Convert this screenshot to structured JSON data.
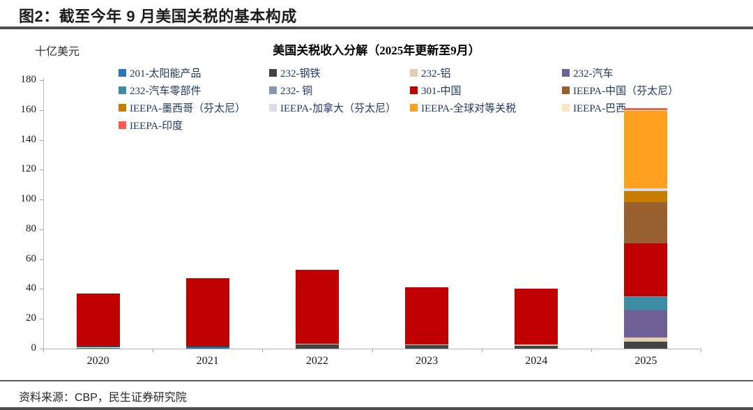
{
  "page": {
    "title": "图2：截至今年 9 月美国关税的基本构成",
    "source": "资料来源：CBP，民生证券研究院"
  },
  "chart_data": {
    "type": "bar",
    "stacked": true,
    "title": "美国关税收入分解（2025年更新至9月）",
    "xlabel": "",
    "ylabel": "十亿美元",
    "categories": [
      "2020",
      "2021",
      "2022",
      "2023",
      "2024",
      "2025"
    ],
    "ylim": [
      0,
      180
    ],
    "yticks": [
      0,
      20,
      40,
      60,
      80,
      100,
      120,
      140,
      160,
      180
    ],
    "grid": false,
    "legend_position": "top",
    "series": [
      {
        "name": "201-太阳能产品",
        "color": "#2E75B6",
        "values": [
          0.7,
          0.8,
          0,
          0,
          0,
          0
        ]
      },
      {
        "name": "232-钢铁",
        "color": "#434343",
        "values": [
          1.2,
          1.2,
          2.8,
          2.2,
          1.8,
          4.7
        ]
      },
      {
        "name": "232-铝",
        "color": "#E0CDB4",
        "values": [
          0,
          0,
          0.7,
          0.8,
          0.8,
          2.7
        ]
      },
      {
        "name": "232-汽车",
        "color": "#6F6096",
        "values": [
          0,
          0,
          0,
          0,
          0,
          18.4
        ]
      },
      {
        "name": "232-汽车零部件",
        "color": "#3E8CA3",
        "values": [
          0,
          0,
          0,
          0,
          0,
          8.9
        ]
      },
      {
        "name": "232- 铜",
        "color": "#8496B0",
        "values": [
          0,
          0,
          0,
          0,
          0,
          0.3
        ]
      },
      {
        "name": "301-中国",
        "color": "#C00000",
        "values": [
          35,
          45,
          49.5,
          38,
          37.5,
          35.8
        ]
      },
      {
        "name": "IEEPA-中国（芬太尼）",
        "color": "#99602F",
        "values": [
          0,
          0,
          0,
          0,
          0,
          27.2
        ]
      },
      {
        "name": "IEEPA-墨西哥（芬太尼）",
        "color": "#C77E00",
        "values": [
          0,
          0,
          0,
          0,
          0,
          7.5
        ]
      },
      {
        "name": "IEEPA-加拿大（芬太尼）",
        "color": "#D9DDE4",
        "values": [
          0,
          0,
          0,
          0,
          0,
          1.9
        ]
      },
      {
        "name": "IEEPA-全球对等关税",
        "color": "#FFA01E",
        "values": [
          0,
          0,
          0,
          0,
          0,
          52.0
        ]
      },
      {
        "name": "IEEPA-巴西",
        "color": "#FBE5C2",
        "values": [
          0,
          0,
          0,
          0,
          0,
          0.6
        ]
      },
      {
        "name": "IEEPA-印度",
        "color": "#F85C50",
        "values": [
          0,
          0,
          0,
          0,
          0,
          1.4
        ]
      }
    ]
  }
}
